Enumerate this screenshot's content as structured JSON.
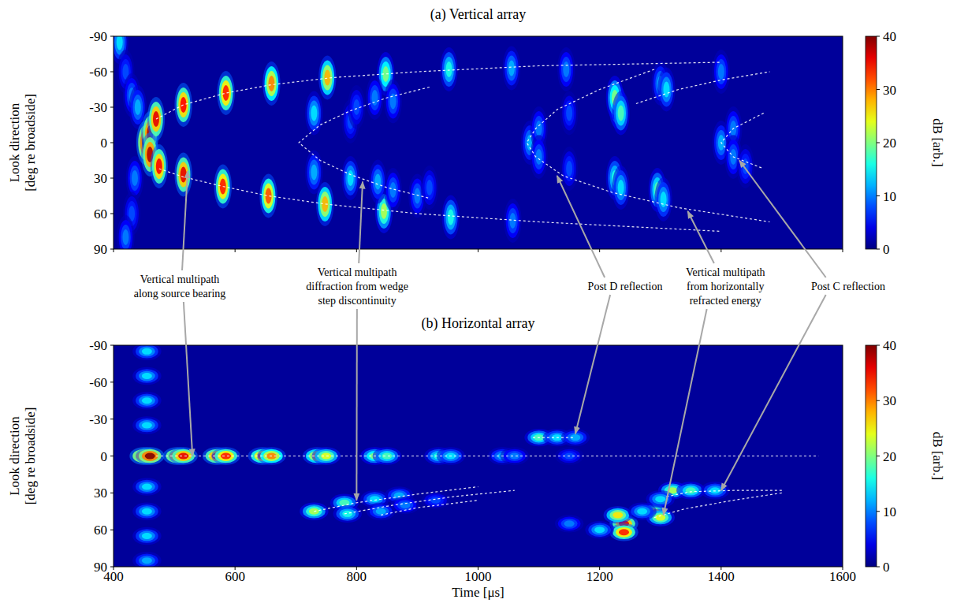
{
  "chart_data": [
    {
      "type": "heatmap",
      "title": "(a) Vertical array",
      "y_label": [
        "Look direction",
        "[deg re broadside]"
      ],
      "xlim": [
        400,
        1600
      ],
      "xticks": [
        400,
        600,
        800,
        1000,
        1200,
        1400,
        1600
      ],
      "ylim": [
        90,
        -90
      ],
      "yticks": [
        -90,
        -60,
        -30,
        0,
        30,
        60,
        90
      ],
      "tick_labels": "y",
      "colorbar": {
        "label": "dB [arb.]",
        "range": [
          0,
          40
        ],
        "ticks": [
          0,
          10,
          20,
          30,
          40
        ]
      },
      "spots": [
        [
          410,
          -85,
          14
        ],
        [
          420,
          -60,
          8
        ],
        [
          430,
          -40,
          10
        ],
        [
          440,
          -30,
          12
        ],
        [
          435,
          30,
          10
        ],
        [
          430,
          60,
          8
        ],
        [
          420,
          80,
          10
        ],
        [
          452,
          0,
          40
        ],
        [
          460,
          -8,
          38
        ],
        [
          470,
          -20,
          36
        ],
        [
          515,
          -32,
          35
        ],
        [
          585,
          -42,
          34
        ],
        [
          660,
          -50,
          30
        ],
        [
          752,
          -55,
          28
        ],
        [
          848,
          -58,
          20
        ],
        [
          952,
          -62,
          16
        ],
        [
          1055,
          -63,
          12
        ],
        [
          1145,
          -62,
          10
        ],
        [
          1400,
          -60,
          10
        ],
        [
          460,
          10,
          38
        ],
        [
          475,
          20,
          35
        ],
        [
          515,
          27,
          36
        ],
        [
          580,
          37,
          34
        ],
        [
          655,
          45,
          32
        ],
        [
          748,
          52,
          28
        ],
        [
          845,
          58,
          22
        ],
        [
          955,
          63,
          16
        ],
        [
          1057,
          66,
          10
        ],
        [
          730,
          -25,
          14
        ],
        [
          790,
          -18,
          8
        ],
        [
          800,
          -30,
          8
        ],
        [
          830,
          -38,
          10
        ],
        [
          860,
          -35,
          10
        ],
        [
          730,
          25,
          12
        ],
        [
          790,
          30,
          14
        ],
        [
          835,
          33,
          12
        ],
        [
          860,
          40,
          10
        ],
        [
          900,
          45,
          10
        ],
        [
          920,
          38,
          8
        ],
        [
          1230,
          -30,
          22
        ],
        [
          1225,
          -38,
          20
        ],
        [
          1235,
          -25,
          18
        ],
        [
          1300,
          -50,
          12
        ],
        [
          1310,
          -45,
          14
        ],
        [
          1225,
          30,
          16
        ],
        [
          1235,
          38,
          14
        ],
        [
          1295,
          40,
          18
        ],
        [
          1305,
          48,
          14
        ],
        [
          1085,
          0,
          12
        ],
        [
          1100,
          -12,
          10
        ],
        [
          1100,
          12,
          10
        ],
        [
          1150,
          -25,
          8
        ],
        [
          1150,
          22,
          8
        ],
        [
          1400,
          0,
          12
        ],
        [
          1420,
          -12,
          10
        ],
        [
          1420,
          12,
          10
        ],
        [
          1440,
          20,
          8
        ]
      ],
      "curves": [
        {
          "x": [
            470,
            515,
            585,
            660,
            760,
            900,
            1100,
            1400
          ],
          "y": [
            -20,
            -32,
            -42,
            -49,
            -55,
            -60,
            -65,
            -68
          ]
        },
        {
          "x": [
            475,
            515,
            580,
            655,
            750,
            900,
            1100,
            1400
          ],
          "y": [
            22,
            29,
            37,
            45,
            52,
            60,
            67,
            75
          ]
        },
        {
          "x": [
            920,
            850,
            790,
            740,
            705,
            740,
            790,
            850,
            920
          ],
          "y": [
            -47,
            -38,
            -27,
            -15,
            0,
            15,
            27,
            38,
            47
          ]
        },
        {
          "x": [
            1290,
            1200,
            1130,
            1095,
            1080,
            1095,
            1140,
            1220,
            1330,
            1480
          ],
          "y": [
            -62,
            -45,
            -28,
            -12,
            0,
            12,
            28,
            42,
            55,
            67
          ]
        },
        {
          "x": [
            1260,
            1330,
            1400,
            1480
          ],
          "y": [
            -33,
            -45,
            -53,
            -60
          ]
        },
        {
          "x": [
            1470,
            1420,
            1400,
            1420,
            1470
          ],
          "y": [
            -25,
            -12,
            0,
            12,
            22
          ]
        }
      ]
    },
    {
      "type": "heatmap",
      "title": "(b) Horizontal array",
      "y_label": [
        "Look direction",
        "[deg re broadside]"
      ],
      "x_label": "Time [μs]",
      "xlim": [
        400,
        1600
      ],
      "xticks": [
        400,
        600,
        800,
        1000,
        1200,
        1400,
        1600
      ],
      "ylim": [
        90,
        -90
      ],
      "yticks": [
        -90,
        -60,
        -30,
        0,
        30,
        60,
        90
      ],
      "colorbar": {
        "label": "dB [arb.]",
        "range": [
          0,
          40
        ],
        "ticks": [
          0,
          10,
          20,
          30,
          40
        ]
      },
      "spots": [
        [
          455,
          -85,
          14
        ],
        [
          455,
          -65,
          14
        ],
        [
          455,
          -45,
          14
        ],
        [
          455,
          -25,
          14
        ],
        [
          455,
          25,
          14
        ],
        [
          455,
          45,
          14
        ],
        [
          455,
          65,
          14
        ],
        [
          455,
          85,
          12
        ],
        [
          450,
          0,
          40
        ],
        [
          460,
          0,
          40
        ],
        [
          505,
          0,
          38
        ],
        [
          515,
          0,
          36
        ],
        [
          570,
          0,
          36
        ],
        [
          585,
          0,
          34
        ],
        [
          645,
          0,
          32
        ],
        [
          660,
          0,
          30
        ],
        [
          735,
          0,
          28
        ],
        [
          750,
          0,
          24
        ],
        [
          830,
          0,
          20
        ],
        [
          850,
          0,
          18
        ],
        [
          935,
          0,
          16
        ],
        [
          955,
          0,
          14
        ],
        [
          1040,
          0,
          12
        ],
        [
          1060,
          0,
          10
        ],
        [
          1150,
          0,
          8
        ],
        [
          730,
          45,
          22
        ],
        [
          780,
          38,
          18
        ],
        [
          785,
          47,
          16
        ],
        [
          830,
          35,
          14
        ],
        [
          840,
          45,
          12
        ],
        [
          870,
          32,
          12
        ],
        [
          880,
          40,
          10
        ],
        [
          930,
          36,
          8
        ],
        [
          1100,
          -15,
          18
        ],
        [
          1130,
          -15,
          14
        ],
        [
          1160,
          -15,
          12
        ],
        [
          1240,
          55,
          36
        ],
        [
          1240,
          62,
          34
        ],
        [
          1230,
          48,
          26
        ],
        [
          1290,
          45,
          22
        ],
        [
          1300,
          50,
          24
        ],
        [
          1200,
          60,
          14
        ],
        [
          1150,
          55,
          10
        ],
        [
          1270,
          45,
          14
        ],
        [
          1320,
          28,
          22
        ],
        [
          1350,
          28,
          18
        ],
        [
          1390,
          28,
          14
        ],
        [
          1300,
          35,
          14
        ]
      ],
      "curves": [
        {
          "x": [
            470,
            1560
          ],
          "y": [
            0,
            0
          ]
        },
        {
          "x": [
            730,
            800,
            900,
            1000
          ],
          "y": [
            45,
            38,
            31,
            25
          ]
        },
        {
          "x": [
            780,
            860,
            960,
            1060
          ],
          "y": [
            47,
            40,
            33,
            28
          ]
        },
        {
          "x": [
            840,
            900,
            1000
          ],
          "y": [
            48,
            42,
            36
          ]
        },
        {
          "x": [
            1090,
            1160
          ],
          "y": [
            -15,
            -15
          ]
        },
        {
          "x": [
            1310,
            1350,
            1420,
            1500
          ],
          "y": [
            33,
            29,
            28,
            28
          ]
        },
        {
          "x": [
            1290,
            1340,
            1420,
            1500
          ],
          "y": [
            50,
            43,
            36,
            30
          ]
        }
      ]
    }
  ],
  "annotations": [
    {
      "text": [
        "Vertical multipath",
        "along source bearing"
      ],
      "x": 509,
      "targets": [
        {
          "panel": 0,
          "x": 522,
          "y": 24
        },
        {
          "panel": 1,
          "x": 530,
          "y": 0
        }
      ]
    },
    {
      "text": [
        "Vertical multipath",
        "diffraction from wedge",
        "step discontinuity"
      ],
      "x": 801,
      "targets": [
        {
          "panel": 0,
          "x": 810,
          "y": 33
        },
        {
          "panel": 1,
          "x": 800,
          "y": 36
        }
      ]
    },
    {
      "text": [
        "Post D reflection"
      ],
      "x": 1242,
      "targets": [
        {
          "panel": 0,
          "x": 1130,
          "y": 28
        },
        {
          "panel": 1,
          "x": 1160,
          "y": -18
        }
      ]
    },
    {
      "text": [
        "Vertical multipath",
        "from horizontally",
        "refracted energy"
      ],
      "x": 1407,
      "targets": [
        {
          "panel": 0,
          "x": 1345,
          "y": 58
        },
        {
          "panel": 1,
          "x": 1305,
          "y": 48
        }
      ]
    },
    {
      "text": [
        "Post C reflection"
      ],
      "x": 1609,
      "targets": [
        {
          "panel": 0,
          "x": 1430,
          "y": 15
        },
        {
          "panel": 1,
          "x": 1400,
          "y": 28
        }
      ]
    }
  ]
}
